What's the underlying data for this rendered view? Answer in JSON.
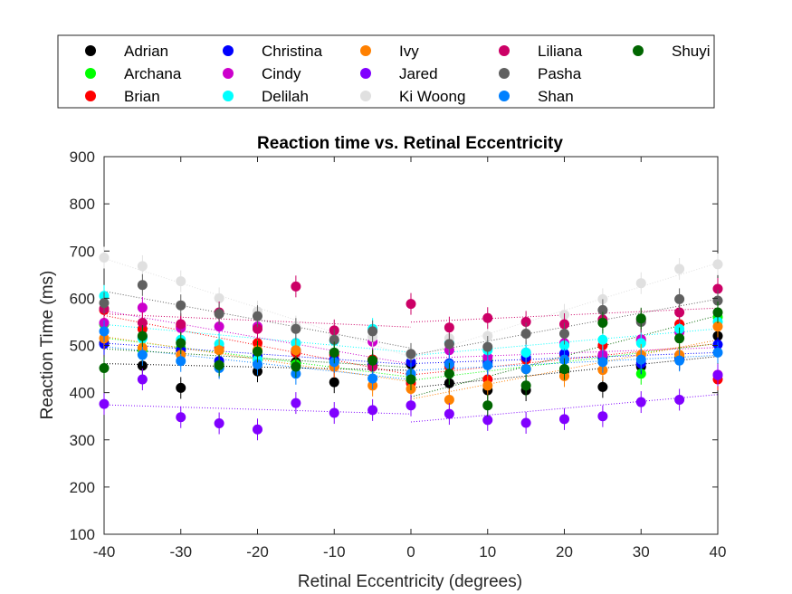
{
  "chart_data": {
    "type": "scatter",
    "title": "Reaction time vs. Retinal Eccentricity",
    "xlabel": "Retinal Eccentricity (degrees)",
    "ylabel": "Reaction Time (ms)",
    "xlim": [
      -40,
      40
    ],
    "ylim": [
      100,
      900
    ],
    "xticks": [
      "-40",
      "-30",
      "-20",
      "-10",
      "0",
      "10",
      "20",
      "30",
      "40"
    ],
    "yticks": [
      "100",
      "200",
      "300",
      "400",
      "500",
      "600",
      "700",
      "800",
      "900"
    ],
    "grid": false,
    "legend_position": "top-outside",
    "x": [
      -40,
      -35,
      -30,
      -25,
      -20,
      -15,
      -10,
      -5,
      0,
      5,
      10,
      15,
      20,
      25,
      30,
      35,
      40
    ],
    "series": [
      {
        "name": "Adrian",
        "color": "#000000",
        "values": [
          505,
          457,
          410,
          455,
          445,
          465,
          422,
          470,
          460,
          420,
          405,
          405,
          445,
          412,
          455,
          470,
          520
        ]
      },
      {
        "name": "Archana",
        "color": "#00ff00",
        "values": [
          545,
          490,
          495,
          460,
          470,
          460,
          465,
          455,
          430,
          440,
          470,
          450,
          450,
          470,
          440,
          475,
          560
        ]
      },
      {
        "name": "Brian",
        "color": "#ff0000",
        "values": [
          575,
          535,
          540,
          495,
          505,
          485,
          480,
          470,
          420,
          455,
          428,
          470,
          480,
          500,
          510,
          545,
          428
        ]
      },
      {
        "name": "Christina",
        "color": "#0000ff",
        "values": [
          503,
          517,
          490,
          467,
          478,
          490,
          470,
          460,
          465,
          462,
          463,
          475,
          483,
          475,
          462,
          472,
          502
        ]
      },
      {
        "name": "Cindy",
        "color": "#cc00cc",
        "values": [
          548,
          580,
          537,
          540,
          540,
          505,
          455,
          508,
          440,
          490,
          475,
          485,
          505,
          480,
          513,
          528,
          438
        ]
      },
      {
        "name": "Delilah",
        "color": "#00ffff",
        "values": [
          605,
          515,
          512,
          503,
          470,
          505,
          510,
          535,
          480,
          505,
          490,
          485,
          500,
          512,
          505,
          535,
          550
        ]
      },
      {
        "name": "Ivy",
        "color": "#ff8000",
        "values": [
          515,
          495,
          480,
          490,
          490,
          490,
          455,
          415,
          408,
          385,
          415,
          450,
          435,
          448,
          480,
          480,
          540
        ]
      },
      {
        "name": "Jared",
        "color": "#8000ff",
        "values": [
          376,
          428,
          348,
          335,
          322,
          378,
          357,
          363,
          373,
          355,
          342,
          336,
          344,
          350,
          380,
          385,
          437
        ]
      },
      {
        "name": "Ki Woong",
        "color": "#e0e0e0",
        "values": [
          686,
          668,
          636,
          600,
          572,
          540,
          520,
          518,
          480,
          515,
          520,
          525,
          565,
          598,
          632,
          662,
          672
        ]
      },
      {
        "name": "Liliana",
        "color": "#cc0066",
        "values": [
          578,
          548,
          545,
          570,
          535,
          625,
          532,
          455,
          588,
          538,
          558,
          550,
          545,
          555,
          555,
          570,
          620
        ]
      },
      {
        "name": "Pasha",
        "color": "#606060",
        "values": [
          590,
          628,
          585,
          567,
          562,
          535,
          512,
          530,
          482,
          503,
          497,
          525,
          525,
          575,
          550,
          598,
          595
        ]
      },
      {
        "name": "Shan",
        "color": "#0080ff",
        "values": [
          530,
          480,
          467,
          452,
          460,
          440,
          465,
          430,
          440,
          460,
          458,
          450,
          470,
          465,
          470,
          468,
          485
        ]
      },
      {
        "name": "Shuyi",
        "color": "#006600",
        "values": [
          452,
          520,
          505,
          458,
          487,
          455,
          485,
          468,
          428,
          440,
          373,
          415,
          450,
          548,
          557,
          515,
          570
        ]
      }
    ]
  }
}
